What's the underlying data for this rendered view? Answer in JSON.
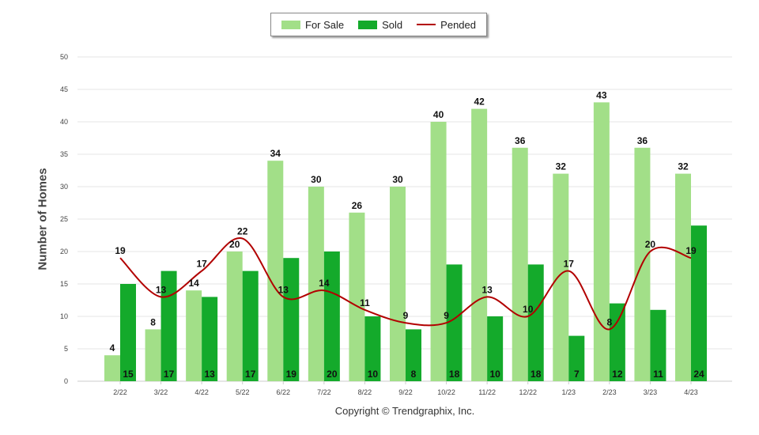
{
  "chart_data": {
    "type": "bar",
    "categories": [
      "2/22",
      "3/22",
      "4/22",
      "5/22",
      "6/22",
      "7/22",
      "8/22",
      "9/22",
      "10/22",
      "11/22",
      "12/22",
      "1/23",
      "2/23",
      "3/23",
      "4/23"
    ],
    "series": [
      {
        "name": "For Sale",
        "type": "bar",
        "color": "#a2df88",
        "values": [
          4,
          8,
          14,
          20,
          34,
          30,
          26,
          30,
          40,
          42,
          36,
          32,
          43,
          36,
          32
        ]
      },
      {
        "name": "Sold",
        "type": "bar",
        "color": "#14aa2b",
        "values": [
          15,
          17,
          13,
          17,
          19,
          20,
          10,
          8,
          18,
          10,
          18,
          7,
          12,
          11,
          24
        ]
      },
      {
        "name": "Pended",
        "type": "line",
        "color": "#b20000",
        "values": [
          19,
          13,
          17,
          22,
          13,
          14,
          11,
          9,
          9,
          13,
          10,
          17,
          8,
          20,
          19
        ]
      }
    ],
    "ylabel": "Number of Homes",
    "ylim": [
      0,
      50
    ],
    "yticks": [
      0,
      5,
      10,
      15,
      20,
      25,
      30,
      35,
      40,
      45,
      50
    ],
    "grid": true,
    "legend": "top-center"
  },
  "footer": {
    "copyright": "Copyright © Trendgraphix, Inc."
  }
}
